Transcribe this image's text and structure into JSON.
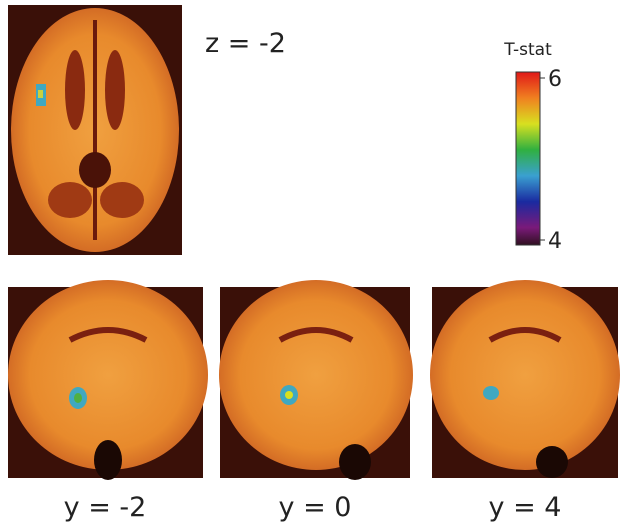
{
  "panels": [
    {
      "label": "z = -2"
    },
    {
      "label": "y = -2"
    },
    {
      "label": "y = 0"
    },
    {
      "label": "y = 4"
    }
  ],
  "colorbar": {
    "title": "T-stat",
    "lim": [
      4,
      6
    ],
    "ticks": [
      4,
      6
    ]
  }
}
